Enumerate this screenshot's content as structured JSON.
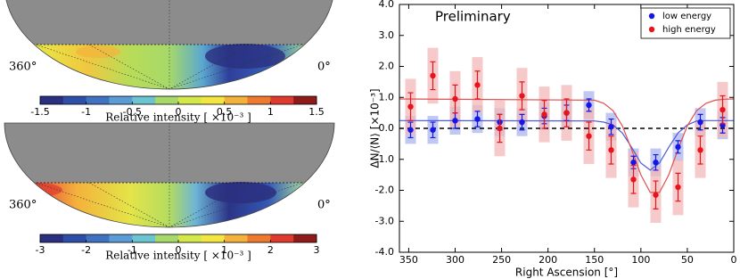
{
  "chart_data": [
    {
      "type": "skymap",
      "lon_labels": [
        "360°",
        "0°"
      ],
      "colorbar_label": "Relative intensity [ ×10⁻³ ]",
      "clim": [
        -1.5,
        1.5
      ],
      "colorbar_ticks": [
        -1.5,
        -1,
        -0.5,
        0,
        0.5,
        1,
        1.5
      ],
      "colorbar_colors": [
        "#2b2f80",
        "#2e4fa8",
        "#3f73c2",
        "#5b9bd6",
        "#6cc4d0",
        "#a6d96a",
        "#d4e84a",
        "#f3e640",
        "#f4b23c",
        "#ee7a30",
        "#df3a2e",
        "#8e1a1a"
      ]
    },
    {
      "type": "skymap",
      "lon_labels": [
        "360°",
        "0°"
      ],
      "colorbar_label": "Relative intensity [ ×10⁻³ ]",
      "clim": [
        -3,
        3
      ],
      "colorbar_ticks": [
        -3,
        -2,
        -1,
        0,
        1,
        2,
        3
      ],
      "colorbar_colors": [
        "#2b2f80",
        "#2e4fa8",
        "#3f73c2",
        "#5b9bd6",
        "#6cc4d0",
        "#a6d96a",
        "#d4e84a",
        "#f3e640",
        "#f4b23c",
        "#ee7a30",
        "#df3a2e",
        "#8e1a1a"
      ]
    },
    {
      "type": "errorbar",
      "title": "Preliminary",
      "xlabel": "Right Ascension [°]",
      "ylabel": "ΔN/⟨N⟩  [×10⁻³]",
      "xlim": [
        360,
        0
      ],
      "xticks": [
        350,
        300,
        250,
        200,
        150,
        100,
        50,
        0
      ],
      "ylim": [
        -4,
        4
      ],
      "yticks": [
        {
          "value": -4,
          "label": "-4.0"
        },
        {
          "value": -3,
          "label": "-3.0"
        },
        {
          "value": -2,
          "label": "-2.0"
        },
        {
          "value": -1,
          "label": "-1.0"
        },
        {
          "value": 0,
          "label": "0.0"
        },
        {
          "value": 1,
          "label": "1.0"
        },
        {
          "value": 2,
          "label": "2.0"
        },
        {
          "value": 3,
          "label": "3.0"
        },
        {
          "value": 4,
          "label": "4.0"
        }
      ],
      "hline": 0,
      "legend": "upper right",
      "series": [
        {
          "name": "low energy",
          "color": "#1515e6",
          "box_color": "#aab4ee",
          "fit_color": "#4a5ad8",
          "x": [
            348,
            324,
            300,
            276,
            252,
            228,
            204,
            180,
            156,
            132,
            108,
            84,
            60,
            36,
            12
          ],
          "values": [
            -0.05,
            -0.05,
            0.25,
            0.3,
            0.2,
            0.2,
            0.4,
            0.5,
            0.75,
            0.05,
            -1.1,
            -1.1,
            -0.6,
            0.2,
            0.1
          ],
          "errors": [
            0.25,
            0.25,
            0.25,
            0.25,
            0.25,
            0.25,
            0.25,
            0.25,
            0.2,
            0.25,
            0.2,
            0.25,
            0.2,
            0.25,
            0.25
          ],
          "sys_errors": [
            0.45,
            0.45,
            0.45,
            0.45,
            0.45,
            0.45,
            0.45,
            0.45,
            0.45,
            0.45,
            0.45,
            0.45,
            0.45,
            0.45,
            0.45
          ],
          "fit_x": [
            360,
            150,
            140,
            130,
            120,
            110,
            100,
            90,
            80,
            70,
            60,
            50,
            40,
            30,
            0
          ],
          "fit_values": [
            0.25,
            0.24,
            0.2,
            0.11,
            -0.15,
            -0.61,
            -1.12,
            -1.35,
            -1.12,
            -0.61,
            -0.15,
            0.11,
            0.24,
            0.25,
            0.25
          ]
        },
        {
          "name": "high energy",
          "color": "#e8141c",
          "box_color": "#f3b8b8",
          "fit_color": "#e05050",
          "x": [
            348,
            324,
            300,
            276,
            252,
            228,
            204,
            180,
            156,
            132,
            108,
            84,
            60,
            36,
            12
          ],
          "values": [
            0.7,
            1.7,
            0.95,
            1.4,
            0.0,
            1.05,
            0.45,
            0.5,
            -0.25,
            -0.7,
            -1.65,
            -2.15,
            -1.9,
            -0.7,
            0.6
          ],
          "errors": [
            0.45,
            0.45,
            0.45,
            0.45,
            0.45,
            0.45,
            0.45,
            0.45,
            0.45,
            0.45,
            0.45,
            0.45,
            0.45,
            0.45,
            0.45
          ],
          "sys_errors": [
            0.9,
            0.9,
            0.9,
            0.9,
            0.9,
            0.9,
            0.9,
            0.9,
            0.9,
            0.9,
            0.9,
            0.9,
            0.9,
            0.9,
            0.9
          ],
          "fit_x": [
            360,
            150,
            140,
            130,
            120,
            110,
            100,
            90,
            80,
            70,
            60,
            50,
            40,
            30,
            20,
            10,
            0
          ],
          "fit_values": [
            0.95,
            0.91,
            0.81,
            0.57,
            0.08,
            -0.68,
            -1.5,
            -2.07,
            -2.07,
            -1.5,
            -0.68,
            0.08,
            0.57,
            0.81,
            0.91,
            0.94,
            0.95
          ]
        }
      ]
    }
  ]
}
